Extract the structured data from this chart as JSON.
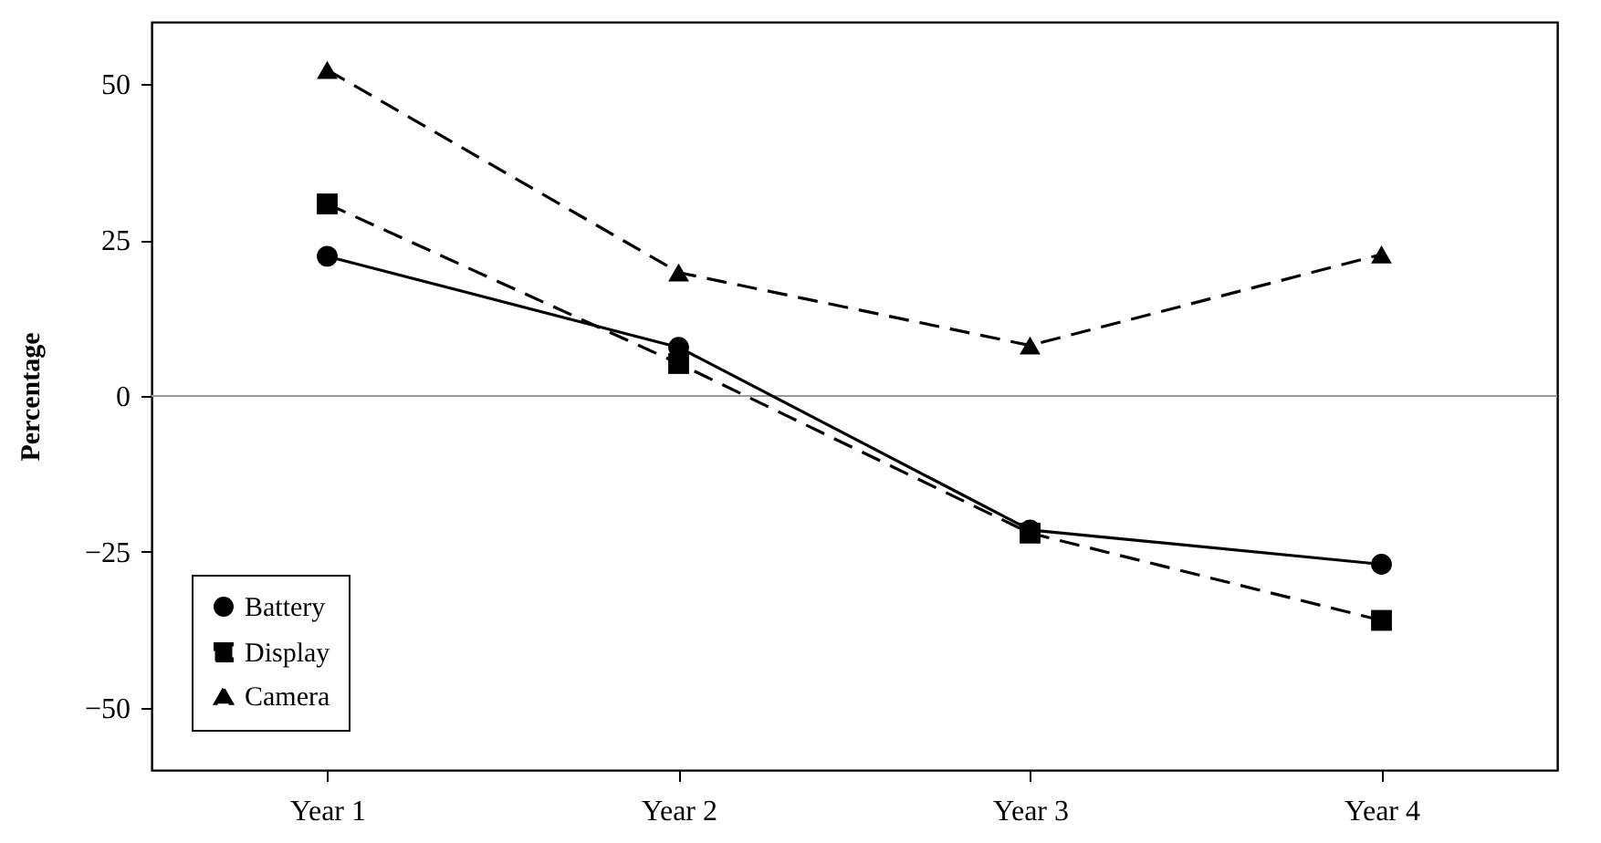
{
  "chart_data": {
    "type": "line",
    "ylabel": "Percentage",
    "categories": [
      "Year 1",
      "Year 2",
      "Year 3",
      "Year 4"
    ],
    "series": [
      {
        "name": "Battery",
        "color": "#000000",
        "marker": "circle",
        "line_style": "solid",
        "values": [
          22.4,
          7.8,
          -21.5,
          -27
        ]
      },
      {
        "name": "Display",
        "color": "#000000",
        "marker": "square",
        "line_style": "dashed",
        "values": [
          30.8,
          5.2,
          -22,
          -36
        ]
      },
      {
        "name": "Camera",
        "color": "#000000",
        "marker": "triangle",
        "line_style": "dashed",
        "values": [
          52.3,
          19.8,
          8.1,
          22.7
        ]
      }
    ],
    "ylim": [
      -60,
      60
    ],
    "yticks": [
      -50,
      -25,
      0,
      25,
      50
    ],
    "grid": false,
    "legend": "bottom left",
    "ref_lines": [
      {
        "axis": "y",
        "value": 0,
        "color": "#999999"
      }
    ]
  }
}
